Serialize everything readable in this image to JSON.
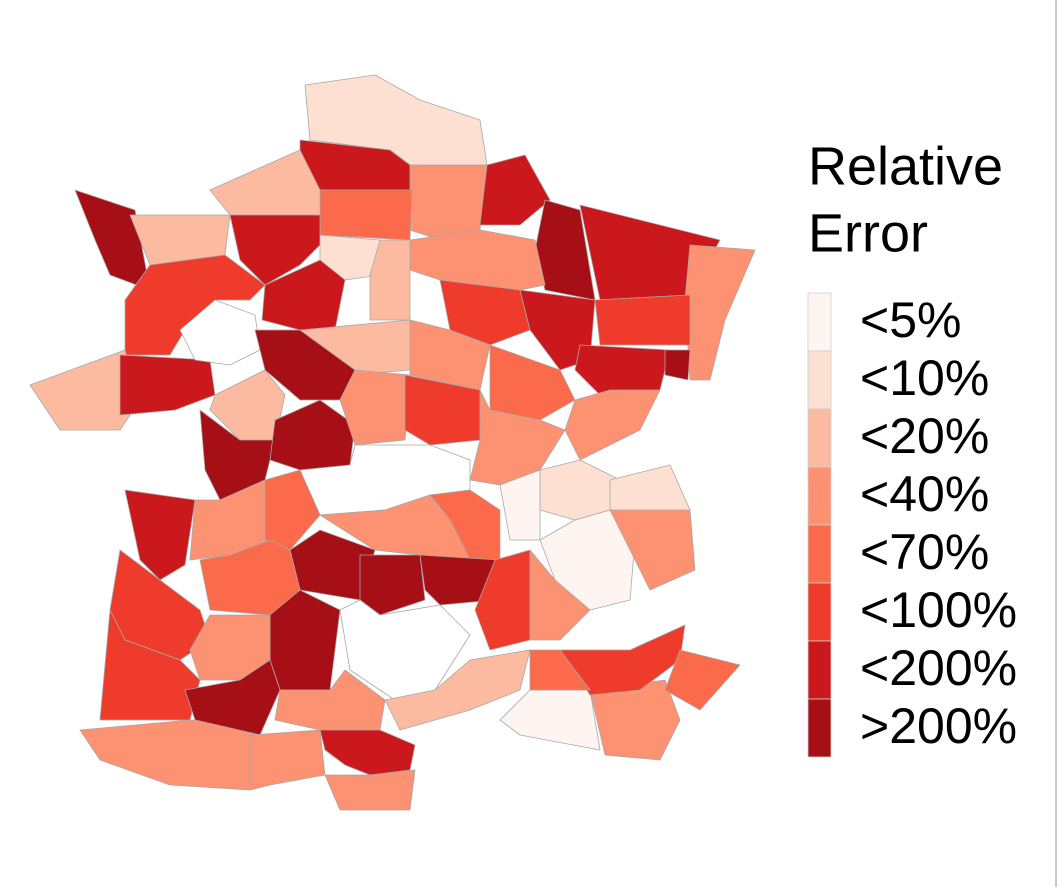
{
  "legend": {
    "title_lines": [
      "Relative",
      "Error"
    ],
    "items": [
      {
        "label": "<5%",
        "color": "#fff5f0"
      },
      {
        "label": "<10%",
        "color": "#fee0d2"
      },
      {
        "label": "<20%",
        "color": "#fcbba1"
      },
      {
        "label": "<40%",
        "color": "#fc9272"
      },
      {
        "label": "<70%",
        "color": "#fb6a4a"
      },
      {
        "label": "<100%",
        "color": "#ef3b2c"
      },
      {
        "label": "<200%",
        "color": "#cb181d"
      },
      {
        "label": ">200%",
        "color": "#a50f15"
      }
    ]
  }
}
